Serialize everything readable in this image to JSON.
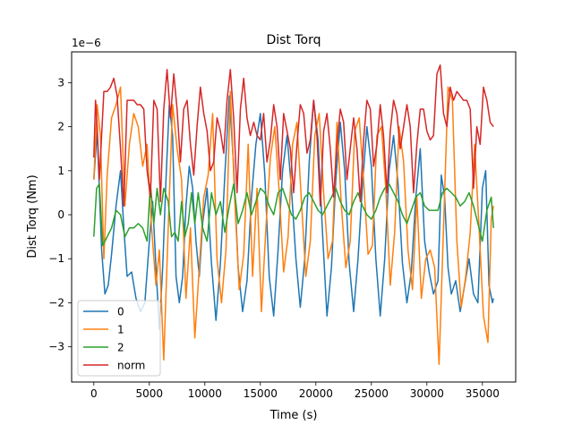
{
  "chart_data": {
    "type": "line",
    "title": "Dist Torq",
    "xlabel": "Time (s)",
    "ylabel": "Dist Torq (Nm)",
    "y_offset_label": "1e−6",
    "xlim": [
      -2000,
      38000
    ],
    "ylim": [
      -3.8,
      3.7
    ],
    "x_ticks": [
      0,
      5000,
      10000,
      15000,
      20000,
      25000,
      30000,
      35000
    ],
    "x_tick_labels": [
      "0",
      "5000",
      "10000",
      "15000",
      "20000",
      "25000",
      "30000",
      "35000"
    ],
    "y_ticks": [
      -3,
      -2,
      -1,
      0,
      1,
      2,
      3
    ],
    "y_tick_labels": [
      "−3",
      "−2",
      "−1",
      "0",
      "1",
      "2",
      "3"
    ],
    "grid": false,
    "legend_position": "lower-left",
    "series": [
      {
        "name": "0",
        "color": "#1f77b4",
        "x": [
          0,
          300,
          700,
          1000,
          1300,
          1600,
          2000,
          2400,
          2700,
          3000,
          3400,
          3800,
          4200,
          4600,
          5000,
          5300,
          5600,
          5900,
          6200,
          6500,
          6800,
          7100,
          7400,
          7700,
          8000,
          8300,
          8600,
          8900,
          9200,
          9500,
          9800,
          10200,
          10600,
          11000,
          11400,
          11800,
          12200,
          12600,
          13000,
          13400,
          13800,
          14200,
          14600,
          15000,
          15400,
          15800,
          16200,
          16600,
          17000,
          17400,
          17800,
          18200,
          18600,
          19000,
          19400,
          19800,
          20200,
          20600,
          21000,
          21400,
          21800,
          22200,
          22600,
          23000,
          23400,
          23800,
          24200,
          24600,
          25000,
          25400,
          25800,
          26200,
          26600,
          27000,
          27400,
          27800,
          28200,
          28600,
          29000,
          29400,
          29800,
          30200,
          30600,
          31000,
          31300,
          31600,
          31900,
          32200,
          32600,
          33000,
          33400,
          33800,
          34200,
          34600,
          35000,
          35300,
          35600,
          35900,
          36000
        ],
        "values": [
          0.8,
          1.9,
          -0.8,
          -1.8,
          -1.6,
          -0.9,
          0.2,
          1.0,
          -0.3,
          -1.4,
          -1.3,
          -1.9,
          -2.2,
          -2.0,
          -0.6,
          0.3,
          -1.2,
          -2.6,
          -1.2,
          0.8,
          2.5,
          1.8,
          -1.4,
          -2.0,
          -1.4,
          0.2,
          1.1,
          0.6,
          -0.6,
          -1.4,
          -0.2,
          0.6,
          -1.1,
          -2.4,
          -1.1,
          0.9,
          2.7,
          1.1,
          -1.2,
          -2.2,
          -1.5,
          0.4,
          1.6,
          2.3,
          0.9,
          -1.4,
          -2.3,
          -0.8,
          1.0,
          1.8,
          0.6,
          -1.0,
          -2.1,
          -1.0,
          1.2,
          2.6,
          1.7,
          -0.4,
          -2.3,
          -1.2,
          0.8,
          2.1,
          1.0,
          -1.1,
          -2.2,
          -1.0,
          0.7,
          2.0,
          1.1,
          -1.0,
          -2.3,
          -1.0,
          1.0,
          1.8,
          0.7,
          -1.1,
          -2.0,
          -1.3,
          0.4,
          1.5,
          -0.6,
          -1.3,
          -1.8,
          -1.5,
          0.9,
          0.4,
          -1.2,
          -1.8,
          -1.5,
          -2.2,
          -1.6,
          -1.0,
          -1.8,
          -2.0,
          0.6,
          1.0,
          -1.6,
          -2.0,
          -1.9
        ]
      },
      {
        "name": "1",
        "color": "#ff7f0e",
        "x": [
          0,
          300,
          600,
          900,
          1200,
          1600,
          2000,
          2400,
          2800,
          3200,
          3600,
          4000,
          4400,
          4800,
          5200,
          5600,
          5900,
          6300,
          6700,
          7100,
          7500,
          7900,
          8300,
          8700,
          9100,
          9500,
          9900,
          10300,
          10700,
          11100,
          11500,
          11900,
          12300,
          12700,
          13100,
          13500,
          13900,
          14300,
          14700,
          15100,
          15500,
          15900,
          16300,
          16700,
          17100,
          17500,
          17900,
          18300,
          18700,
          19100,
          19500,
          19900,
          20300,
          20700,
          21100,
          21500,
          21900,
          22300,
          22700,
          23100,
          23500,
          23900,
          24300,
          24700,
          25100,
          25500,
          25900,
          26300,
          26700,
          27100,
          27500,
          27900,
          28300,
          28700,
          29100,
          29500,
          29900,
          30300,
          30700,
          31100,
          31500,
          31900,
          32300,
          32700,
          33100,
          33500,
          33900,
          34300,
          34700,
          35100,
          35500,
          35800,
          36000
        ],
        "values": [
          0.8,
          2.5,
          1.8,
          -1.0,
          0.9,
          2.2,
          2.5,
          2.9,
          0.2,
          1.6,
          2.3,
          2.0,
          1.1,
          1.6,
          -0.3,
          -1.6,
          -0.8,
          -3.3,
          -0.3,
          2.5,
          1.5,
          0.8,
          -1.9,
          -0.3,
          -2.8,
          -1.2,
          0.4,
          0.9,
          2.3,
          -1.0,
          -2.0,
          -0.8,
          2.8,
          0.3,
          -1.7,
          -0.9,
          1.6,
          -1.4,
          0.6,
          -2.2,
          -0.3,
          1.3,
          2.0,
          0.5,
          -1.3,
          -0.5,
          1.6,
          2.1,
          0.3,
          -1.4,
          -0.6,
          1.8,
          2.3,
          0.5,
          -1.0,
          -0.6,
          2.1,
          0.2,
          -1.2,
          -0.6,
          1.9,
          2.2,
          0.8,
          -0.9,
          -0.7,
          1.8,
          2.0,
          0.6,
          -1.6,
          -0.4,
          2.0,
          1.2,
          -0.8,
          -1.7,
          0.4,
          -1.9,
          -1.0,
          -0.8,
          -1.2,
          -3.4,
          -0.3,
          2.9,
          2.6,
          -0.6,
          -2.1,
          -1.4,
          -0.4,
          1.6,
          -0.3,
          -2.3,
          -2.9,
          -0.1,
          0.2
        ]
      },
      {
        "name": "2",
        "color": "#2ca02c",
        "x": [
          0,
          250,
          500,
          800,
          1200,
          1600,
          2000,
          2400,
          2800,
          3200,
          3600,
          4000,
          4400,
          4800,
          5100,
          5400,
          5700,
          6000,
          6300,
          6700,
          7000,
          7300,
          7600,
          7900,
          8200,
          8500,
          8800,
          9100,
          9400,
          9800,
          10200,
          10600,
          11000,
          11400,
          11800,
          12200,
          12600,
          13000,
          13400,
          13800,
          14200,
          14600,
          15000,
          15400,
          15800,
          16200,
          16600,
          17000,
          17400,
          17800,
          18200,
          18600,
          19000,
          19400,
          19800,
          20200,
          20600,
          21000,
          21400,
          21800,
          22200,
          22600,
          23000,
          23400,
          23800,
          24200,
          24600,
          25000,
          25400,
          25800,
          26200,
          26600,
          27000,
          27400,
          27800,
          28200,
          28600,
          29000,
          29400,
          29800,
          30200,
          30600,
          31000,
          31400,
          31800,
          32200,
          32600,
          33000,
          33400,
          33800,
          34200,
          34600,
          35000,
          35400,
          35800,
          36000
        ],
        "values": [
          -0.5,
          0.6,
          0.7,
          -0.7,
          -0.5,
          -0.3,
          0.1,
          0.0,
          -0.5,
          -0.3,
          -0.3,
          -0.2,
          -0.3,
          -0.6,
          0.7,
          -0.2,
          0.6,
          0.0,
          0.6,
          0.3,
          -0.5,
          -0.4,
          -0.6,
          0.3,
          -0.5,
          -0.2,
          0.5,
          -0.2,
          0.5,
          -0.3,
          -0.6,
          0.5,
          0.0,
          0.3,
          -0.4,
          0.2,
          0.7,
          -0.2,
          0.1,
          0.5,
          0.0,
          0.3,
          0.6,
          0.5,
          0.2,
          0.0,
          0.5,
          0.6,
          0.3,
          0.0,
          -0.1,
          0.1,
          0.4,
          0.5,
          0.3,
          0.1,
          0.0,
          0.2,
          0.4,
          0.6,
          0.3,
          0.1,
          0.0,
          0.3,
          0.5,
          0.2,
          0.0,
          -0.1,
          0.1,
          0.4,
          0.6,
          0.7,
          0.5,
          0.3,
          0.0,
          -0.2,
          0.1,
          0.4,
          0.5,
          0.2,
          0.1,
          0.1,
          0.1,
          0.5,
          0.6,
          0.5,
          0.4,
          0.2,
          0.3,
          0.5,
          0.2,
          -0.2,
          -0.6,
          0.1,
          0.4,
          -0.3
        ]
      },
      {
        "name": "norm",
        "color": "#d62728",
        "x": [
          0,
          150,
          300,
          500,
          700,
          900,
          1200,
          1500,
          1800,
          2100,
          2400,
          2700,
          3000,
          3300,
          3600,
          3900,
          4200,
          4500,
          4800,
          5100,
          5400,
          5700,
          6000,
          6300,
          6600,
          6900,
          7200,
          7500,
          7800,
          8100,
          8400,
          8700,
          9000,
          9300,
          9600,
          9900,
          10200,
          10500,
          10800,
          11100,
          11400,
          11700,
          12000,
          12300,
          12600,
          12900,
          13200,
          13500,
          13800,
          14100,
          14400,
          14700,
          15000,
          15300,
          15600,
          15900,
          16200,
          16500,
          16800,
          17100,
          17400,
          17700,
          18000,
          18300,
          18600,
          18900,
          19200,
          19500,
          19800,
          20100,
          20400,
          20700,
          21000,
          21300,
          21600,
          21900,
          22200,
          22500,
          22800,
          23100,
          23400,
          23700,
          24000,
          24300,
          24600,
          24900,
          25200,
          25500,
          25800,
          26100,
          26400,
          26700,
          27000,
          27300,
          27600,
          27900,
          28200,
          28500,
          28800,
          29100,
          29400,
          29700,
          30000,
          30300,
          30600,
          30900,
          31200,
          31500,
          31800,
          32100,
          32400,
          32700,
          33000,
          33300,
          33600,
          33900,
          34200,
          34500,
          34800,
          35100,
          35400,
          35700,
          36000
        ],
        "values": [
          1.3,
          2.6,
          2.0,
          0.8,
          1.8,
          2.8,
          2.8,
          2.9,
          3.1,
          2.7,
          1.5,
          0.2,
          2.6,
          2.6,
          2.6,
          2.5,
          2.5,
          2.4,
          1.0,
          0.4,
          2.6,
          2.4,
          0.3,
          2.4,
          3.3,
          2.2,
          3.2,
          2.4,
          1.2,
          2.4,
          2.6,
          1.6,
          0.9,
          2.0,
          2.9,
          2.3,
          1.9,
          1.0,
          1.2,
          2.2,
          1.9,
          1.4,
          2.6,
          3.3,
          2.2,
          0.5,
          2.4,
          3.1,
          2.2,
          1.8,
          2.1,
          1.8,
          1.7,
          2.3,
          1.2,
          1.7,
          2.5,
          2.0,
          0.8,
          2.3,
          1.9,
          1.5,
          0.5,
          1.6,
          2.5,
          2.3,
          1.4,
          1.7,
          2.6,
          1.8,
          0.2,
          1.9,
          2.3,
          1.5,
          0.4,
          1.6,
          2.4,
          2.1,
          0.8,
          1.5,
          2.2,
          1.5,
          0.3,
          1.7,
          2.6,
          2.4,
          1.1,
          1.6,
          2.5,
          1.8,
          0.5,
          1.9,
          2.6,
          2.3,
          1.5,
          2.0,
          2.5,
          2.0,
          0.5,
          1.6,
          2.4,
          2.4,
          1.9,
          1.7,
          1.8,
          3.2,
          3.4,
          2.3,
          2.0,
          2.9,
          2.6,
          2.8,
          2.7,
          2.6,
          2.6,
          2.4,
          0.6,
          2.0,
          1.6,
          2.9,
          2.6,
          2.1,
          2.0
        ]
      }
    ]
  }
}
